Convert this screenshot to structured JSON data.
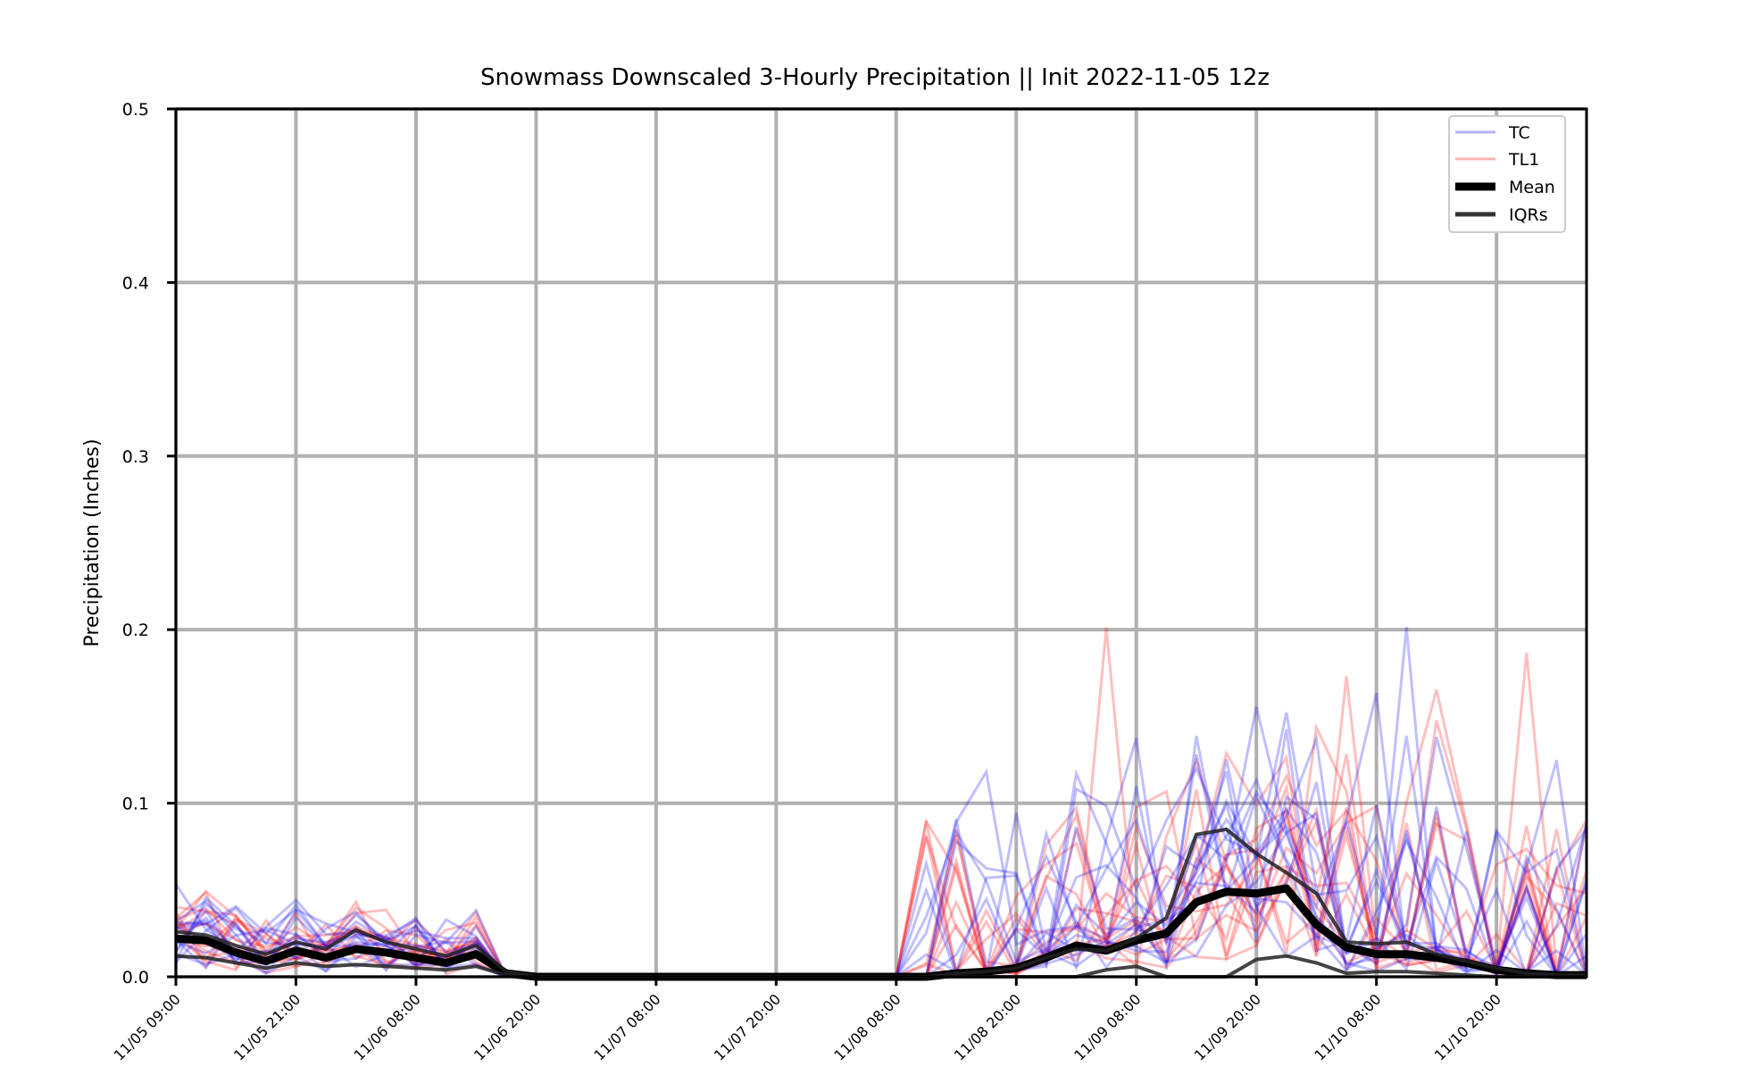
{
  "chart_data": {
    "type": "line",
    "title": "Snowmass Downscaled 3-Hourly Precipitation || Init 2022-11-05 12z",
    "xlabel": "",
    "ylabel": "Precipitation (Inches)",
    "ylim": [
      0,
      0.5
    ],
    "x_start": "11/05 09:00",
    "x_step_hours": 3,
    "n_steps": 48,
    "y_ticks": [
      "0.0",
      "0.1",
      "0.2",
      "0.3",
      "0.4",
      "0.5"
    ],
    "x_ticks": [
      "11/05 09:00",
      "11/05 21:00",
      "11/06 08:00",
      "11/06 20:00",
      "11/07 08:00",
      "11/07 20:00",
      "11/08 08:00",
      "11/08 20:00",
      "11/09 08:00",
      "11/09 20:00",
      "11/10 08:00",
      "11/10 20:00"
    ],
    "grid": true,
    "legend_position": "top-right",
    "colors": {
      "TC": "#0000ff",
      "TL1": "#ff0000",
      "Mean": "#000000",
      "IQRs": "#000000"
    },
    "series": [
      {
        "name": "Mean",
        "values": [
          0.022,
          0.021,
          0.014,
          0.009,
          0.015,
          0.011,
          0.016,
          0.014,
          0.011,
          0.008,
          0.013,
          0.002,
          0,
          0,
          0,
          0,
          0,
          0,
          0,
          0,
          0,
          0,
          0,
          0,
          0,
          0,
          0.002,
          0.003,
          0.005,
          0.011,
          0.018,
          0.015,
          0.021,
          0.025,
          0.043,
          0.049,
          0.048,
          0.051,
          0.03,
          0.017,
          0.013,
          0.013,
          0.011,
          0.008,
          0.004,
          0.002,
          0.001,
          0.001
        ]
      },
      {
        "name": "IQRs",
        "values": [
          0.026,
          0.024,
          0.018,
          0.013,
          0.02,
          0.016,
          0.027,
          0.02,
          0.016,
          0.012,
          0.018,
          0.003,
          0,
          0,
          0,
          0,
          0,
          0,
          0,
          0,
          0,
          0,
          0,
          0,
          0,
          0,
          0.002,
          0.003,
          0.005,
          0.011,
          0.016,
          0.015,
          0.022,
          0.034,
          0.082,
          0.085,
          0.071,
          0.06,
          0.048,
          0.02,
          0.019,
          0.02,
          0.013,
          0.009,
          0.005,
          0.002,
          0.001,
          0.001
        ]
      },
      {
        "name": "IQRs",
        "values": [
          0.012,
          0.011,
          0.008,
          0.005,
          0.008,
          0.006,
          0.007,
          0.006,
          0.005,
          0.004,
          0.006,
          0.001,
          0,
          0,
          0,
          0,
          0,
          0,
          0,
          0,
          0,
          0,
          0,
          0,
          0,
          0,
          0,
          0,
          0,
          0,
          0,
          0.004,
          0.006,
          0,
          0,
          0,
          0.01,
          0.012,
          0.008,
          0.002,
          0.003,
          0.003,
          0.002,
          0.001,
          0,
          0,
          0,
          0
        ]
      }
    ]
  },
  "legend": {
    "entries": [
      {
        "label": "TC",
        "color": "#0000ff"
      },
      {
        "label": "TL1",
        "color": "#ff0000"
      },
      {
        "label": "Mean",
        "color": "#000000"
      },
      {
        "label": "IQRs",
        "color": "#333333"
      }
    ]
  }
}
